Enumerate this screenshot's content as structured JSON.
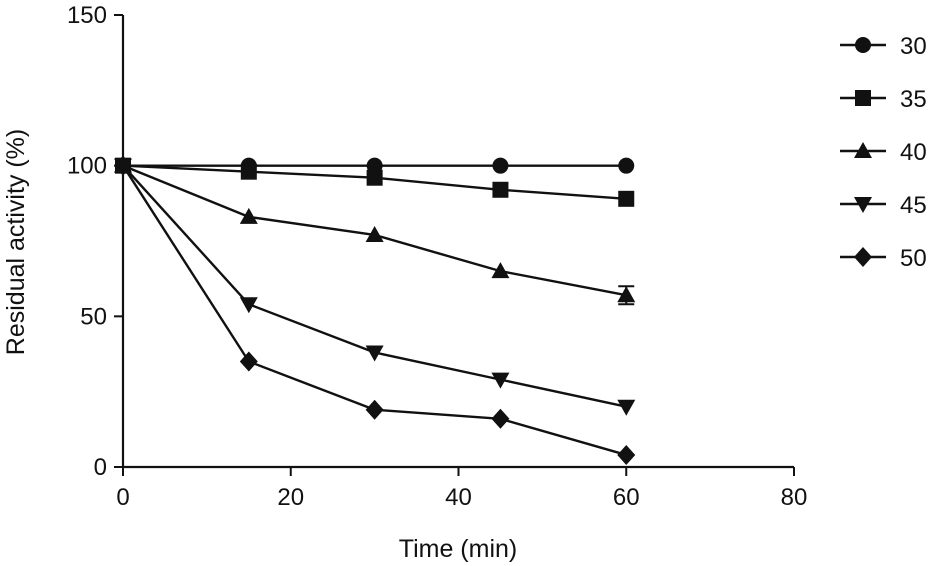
{
  "chart_data": {
    "type": "line",
    "title": "",
    "xlabel": "Time (min)",
    "ylabel": "Residual activity (%)",
    "xlim": [
      0,
      80
    ],
    "ylim": [
      0,
      150
    ],
    "xticks": [
      0,
      20,
      40,
      60,
      80
    ],
    "yticks": [
      0,
      50,
      100,
      150
    ],
    "x": [
      0,
      15,
      30,
      45,
      60
    ],
    "grid": false,
    "legend_position": "top-right",
    "series": [
      {
        "name": "30",
        "marker": "circle",
        "values": [
          100,
          100,
          100,
          100,
          100
        ],
        "error_bars": [
          0,
          0,
          0,
          0,
          0
        ]
      },
      {
        "name": "35",
        "marker": "square",
        "values": [
          100,
          98,
          96,
          92,
          89
        ],
        "error_bars": [
          0,
          0,
          0,
          0,
          0
        ]
      },
      {
        "name": "40",
        "marker": "triangle-up",
        "values": [
          100,
          83,
          77,
          65,
          57
        ],
        "error_bars": [
          0,
          0,
          0,
          0,
          3
        ]
      },
      {
        "name": "45",
        "marker": "triangle-down",
        "values": [
          100,
          54,
          38,
          29,
          20
        ],
        "error_bars": [
          0,
          0,
          0,
          0,
          0
        ]
      },
      {
        "name": "50",
        "marker": "diamond",
        "values": [
          100,
          35,
          19,
          16,
          4
        ],
        "error_bars": [
          0,
          0,
          0,
          0,
          0
        ]
      }
    ],
    "colors": {
      "ink": "#111111"
    }
  }
}
